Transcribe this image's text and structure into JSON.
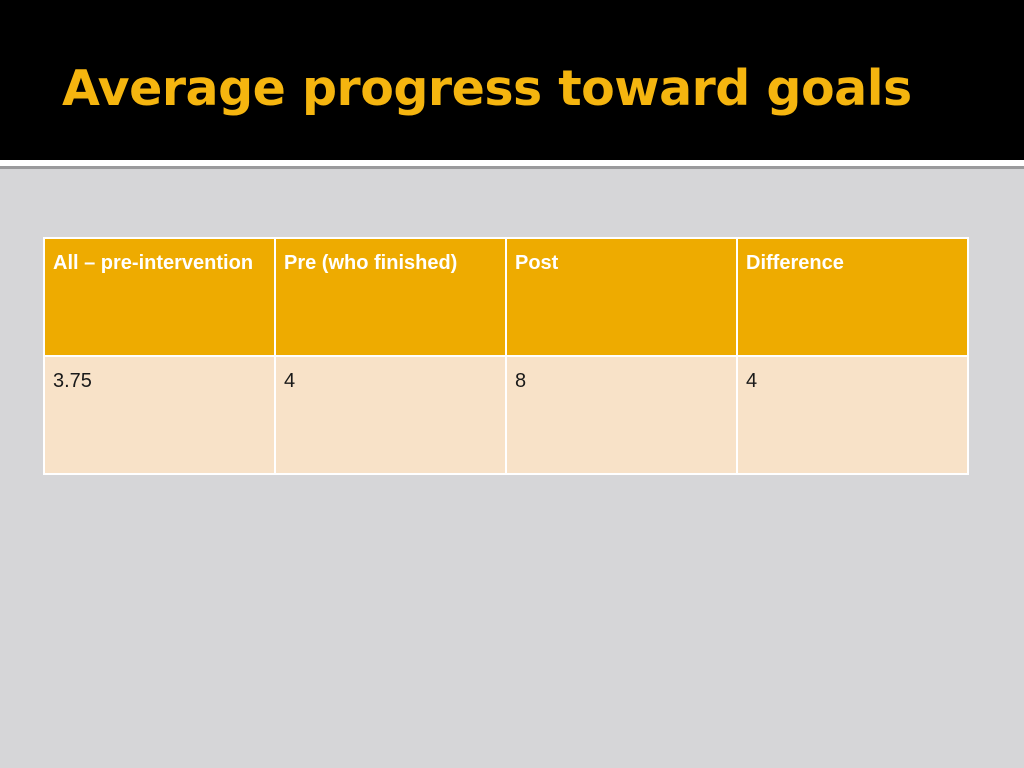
{
  "slide": {
    "title": "Average progress toward goals",
    "colors": {
      "title_bar": "#000000",
      "title_text": "#f5b50f",
      "slide_background": "#d6d6d8",
      "header_fill": "#eeab00",
      "body_fill": "#f8e2c8"
    }
  },
  "table": {
    "headers": [
      "All – pre-intervention",
      "Pre (who finished)",
      "Post",
      "Difference"
    ],
    "rows": [
      [
        "3.75",
        "4",
        "8",
        "4"
      ]
    ]
  }
}
